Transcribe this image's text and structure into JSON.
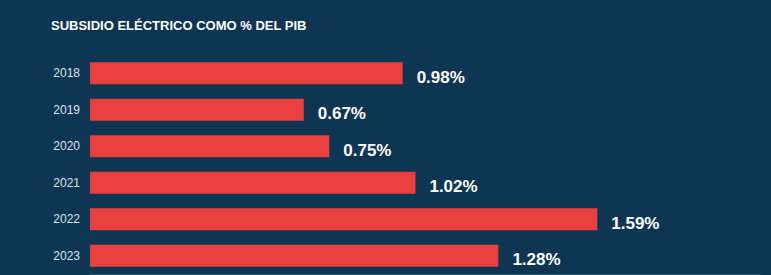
{
  "chart_data": {
    "type": "bar",
    "title": "SUBSIDIO ELÉCTRICO COMO % DEL PIB",
    "orientation": "horizontal",
    "categories": [
      "2018",
      "2019",
      "2020",
      "2021",
      "2022",
      "2023"
    ],
    "values": [
      0.98,
      0.67,
      0.75,
      1.02,
      1.59,
      1.28
    ],
    "value_labels": [
      "0.98%",
      "0.67%",
      "0.75%",
      "1.02%",
      "1.59%",
      "1.28%"
    ],
    "color": "#e8403f",
    "xlim": [
      0,
      2.1
    ],
    "grid": false,
    "data_labels": true,
    "tick_labels": "y"
  }
}
